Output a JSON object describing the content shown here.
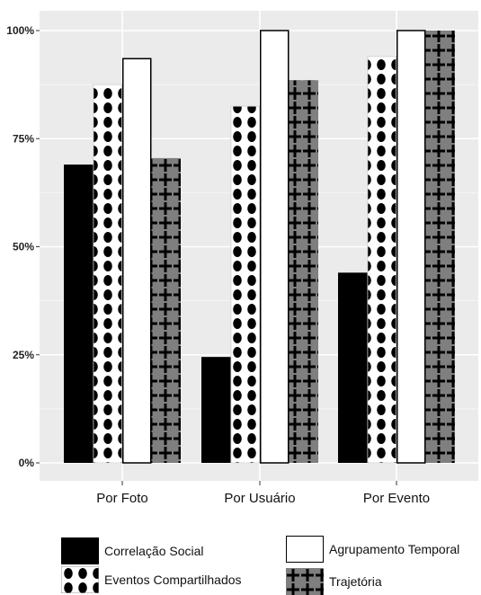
{
  "chart_data": {
    "type": "bar",
    "categories": [
      "Por Foto",
      "Por Usuário",
      "Por Evento"
    ],
    "series": [
      {
        "name": "Correlação Social",
        "values": [
          69,
          24.5,
          44
        ],
        "pattern": "solid",
        "color": "#000000"
      },
      {
        "name": "Eventos Compartilhados",
        "values": [
          87.5,
          82.5,
          94
        ],
        "pattern": "dots",
        "color": "#000000"
      },
      {
        "name": "Agrupamento Temporal",
        "values": [
          93.5,
          100,
          100
        ],
        "pattern": "blank",
        "color": "#ffffff"
      },
      {
        "name": "Trajetória",
        "values": [
          70.5,
          88.5,
          100
        ],
        "pattern": "crosses",
        "color": "#7f7f7f"
      }
    ],
    "ylim": [
      0,
      100
    ],
    "yticks": [
      "0%",
      "25%",
      "50%",
      "75%",
      "100%"
    ],
    "ytick_values": [
      0,
      25,
      50,
      75,
      100
    ],
    "xlabel": "",
    "ylabel": "",
    "title": "",
    "grid": true,
    "panel_background": "#ebebeb",
    "legend_position": "bottom"
  }
}
